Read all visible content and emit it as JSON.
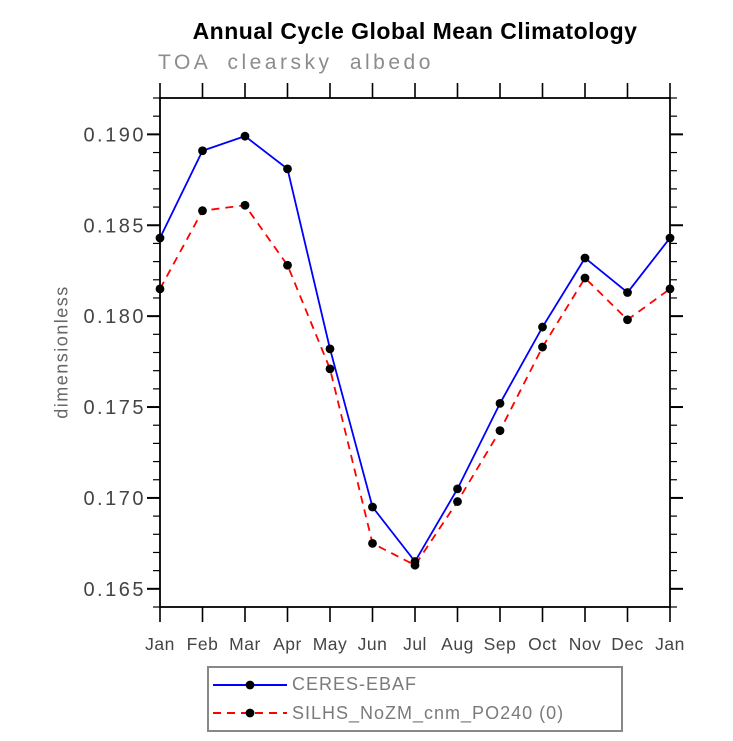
{
  "colors": {
    "background": "#ffffff",
    "axis": "#000000",
    "tick_label": "#444444",
    "title": "#000000",
    "subtitle": "#8c8c8c",
    "ylabel": "#666666",
    "legend_text": "#7a7a7a",
    "legend_border": "#888888",
    "series_blue": "#0000ff",
    "series_red": "#ff0000",
    "marker": "#000000"
  },
  "chart_data": {
    "type": "line",
    "title": "Annual Cycle Global Mean Climatology",
    "subtitle": "TOA clearsky albedo",
    "ylabel": "dimensionless",
    "xlabel": "",
    "categories": [
      "Jan",
      "Feb",
      "Mar",
      "Apr",
      "May",
      "Jun",
      "Jul",
      "Aug",
      "Sep",
      "Oct",
      "Nov",
      "Dec",
      "Jan"
    ],
    "ylim": [
      0.164,
      0.192
    ],
    "ytick_values": [
      0.165,
      0.17,
      0.175,
      0.18,
      0.185,
      0.19
    ],
    "ytick_decimals": 3,
    "minor_tick_step": 0.001,
    "grid": false,
    "legend_position": "bottom-center",
    "series": [
      {
        "name": "CERES-EBAF",
        "color": "#0000ff",
        "line_style": "solid",
        "marker": "circle",
        "marker_color": "#000000",
        "values": [
          0.1843,
          0.1891,
          0.1899,
          0.1881,
          0.1782,
          0.1695,
          0.1665,
          0.1705,
          0.1752,
          0.1794,
          0.1832,
          0.1813,
          0.1843
        ]
      },
      {
        "name": "SILHS_NoZM_cnm_PO240 (0)",
        "color": "#ff0000",
        "line_style": "dashed",
        "marker": "circle",
        "marker_color": "#000000",
        "values": [
          0.1815,
          0.1858,
          0.1861,
          0.1828,
          0.1771,
          0.1675,
          0.1663,
          0.1698,
          0.1737,
          0.1783,
          0.1821,
          0.1798,
          0.1815
        ]
      }
    ]
  }
}
